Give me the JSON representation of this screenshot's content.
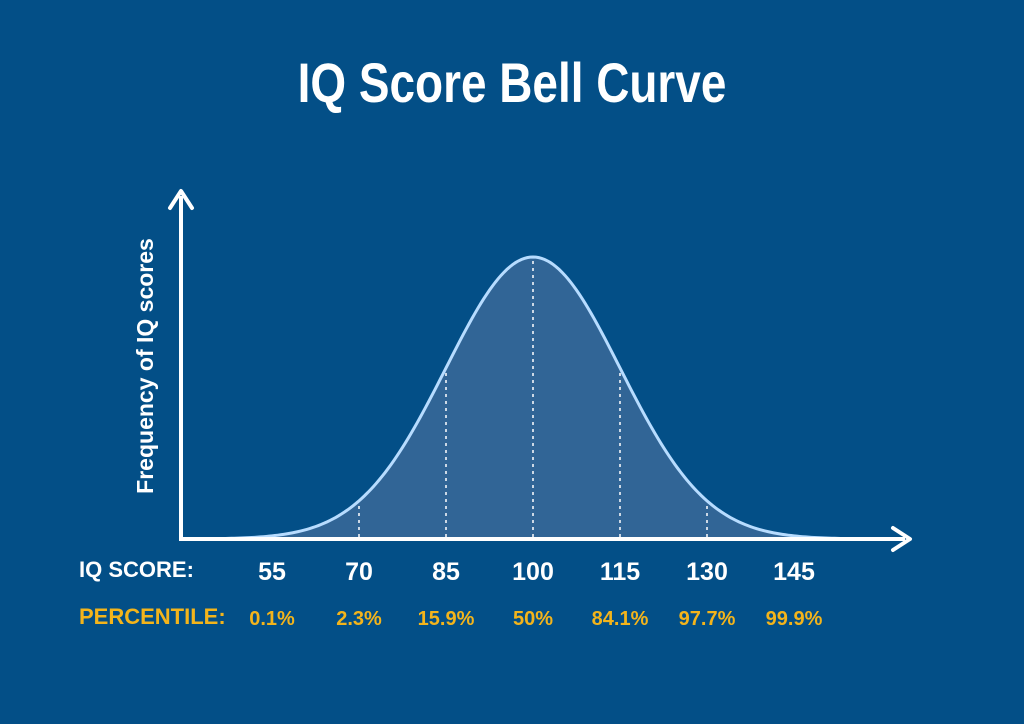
{
  "chart_data": {
    "type": "area",
    "title": "IQ Score Bell Curve",
    "ylabel": "Frequency of IQ scores",
    "xlabel": "",
    "x_row_label": "IQ SCORE:",
    "percentile_row_label": "PERCENTILE:",
    "distribution": {
      "mean": 100,
      "sd": 15
    },
    "xlim": [
      40,
      170
    ],
    "ticks": [
      {
        "score": 55,
        "label": "55",
        "percentile": "0.1%"
      },
      {
        "score": 70,
        "label": "70",
        "percentile": "2.3%"
      },
      {
        "score": 85,
        "label": "85",
        "percentile": "15.9%"
      },
      {
        "score": 100,
        "label": "100",
        "percentile": "50%"
      },
      {
        "score": 115,
        "label": "115",
        "percentile": "84.1%"
      },
      {
        "score": 130,
        "label": "130",
        "percentile": "97.7%"
      },
      {
        "score": 145,
        "label": "145",
        "percentile": "99.9%"
      }
    ],
    "colors": {
      "background": "#034f87",
      "curve": "#b7dcff",
      "fill": "#316596",
      "axis": "#ffffff",
      "score_text": "#ffffff",
      "percentile_text": "#f3b41b"
    }
  }
}
